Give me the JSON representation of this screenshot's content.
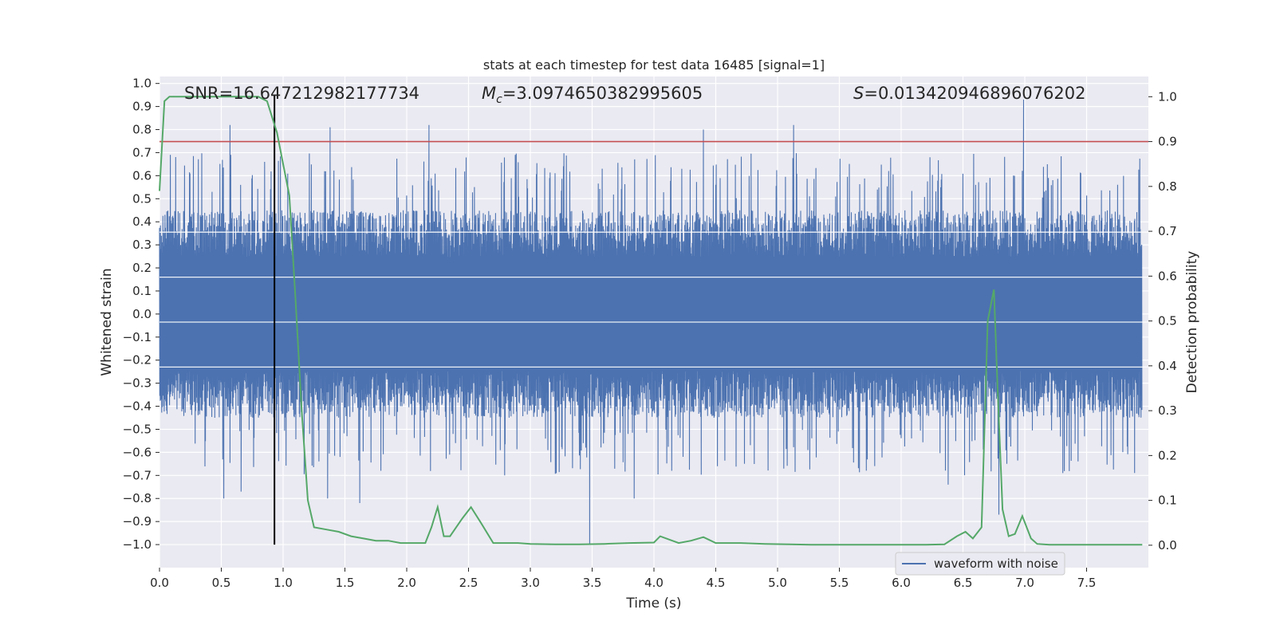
{
  "chart_data": {
    "type": "line",
    "title": "stats at each timestep for test data 16485 [signal=1]",
    "xlabel": "Time (s)",
    "ylabel_left": "Whitened strain",
    "ylabel_right": "Detection probability",
    "xlim": [
      0.0,
      8.0
    ],
    "ylim_left": [
      -1.1,
      1.03
    ],
    "ylim_right": [
      -0.05,
      1.045
    ],
    "x_ticks": [
      "0.0",
      "0.5",
      "1.0",
      "1.5",
      "2.0",
      "2.5",
      "3.0",
      "3.5",
      "4.0",
      "4.5",
      "5.0",
      "5.5",
      "6.0",
      "6.5",
      "7.0",
      "7.5"
    ],
    "y_ticks_left": [
      "1.0",
      "0.9",
      "0.8",
      "0.7",
      "0.6",
      "0.5",
      "0.4",
      "0.3",
      "0.2",
      "0.1",
      "0.0",
      "-0.1",
      "-0.2",
      "-0.3",
      "-0.4",
      "-0.5",
      "-0.6",
      "-0.7",
      "-0.8",
      "-0.9",
      "-1.0"
    ],
    "y_ticks_right": [
      "1.0",
      "0.9",
      "0.8",
      "0.7",
      "0.6",
      "0.5",
      "0.4",
      "0.3",
      "0.2",
      "0.1",
      "0.0"
    ],
    "grid": true,
    "legend_position": "bottom-right",
    "annotations": {
      "snr": "SNR=16.647212982177734",
      "mc_symbol": "M",
      "mc_sub": "c",
      "mc_value": "=3.0974650382995605",
      "s_symbol": "S",
      "s_value": "=0.013420946896076202"
    },
    "series": [
      {
        "name": "waveform with noise",
        "role": "strain",
        "axis": "left",
        "color": "#4c72b0",
        "sample_count": 2000,
        "band": [
          -0.45,
          0.45
        ],
        "peaks": [
          {
            "x": 0.57,
            "y": 0.82
          },
          {
            "x": 0.85,
            "y": 0.66
          },
          {
            "x": 1.38,
            "y": 0.81
          },
          {
            "x": 2.18,
            "y": 0.82
          },
          {
            "x": 4.4,
            "y": 0.8
          },
          {
            "x": 5.13,
            "y": 0.82
          },
          {
            "x": 6.99,
            "y": 0.93
          },
          {
            "x": 0.52,
            "y": -0.8
          },
          {
            "x": 0.66,
            "y": -0.77
          },
          {
            "x": 1.36,
            "y": -0.8
          },
          {
            "x": 1.62,
            "y": -0.82
          },
          {
            "x": 3.48,
            "y": -1.0
          },
          {
            "x": 3.84,
            "y": -0.8
          },
          {
            "x": 6.38,
            "y": -0.74
          },
          {
            "x": 6.79,
            "y": -0.87
          }
        ]
      },
      {
        "role": "detection probability",
        "axis": "right",
        "color": "#55a868",
        "x": [
          0.0,
          0.04,
          0.08,
          0.12,
          0.2,
          0.3,
          0.4,
          0.5,
          0.6,
          0.7,
          0.8,
          0.87,
          0.95,
          1.0,
          1.05,
          1.1,
          1.15,
          1.2,
          1.25,
          1.35,
          1.45,
          1.55,
          1.65,
          1.75,
          1.85,
          1.95,
          2.05,
          2.15,
          2.2,
          2.25,
          2.3,
          2.35,
          2.45,
          2.52,
          2.6,
          2.7,
          2.8,
          2.9,
          3.0,
          3.2,
          3.4,
          3.6,
          3.8,
          4.0,
          4.05,
          4.1,
          4.2,
          4.3,
          4.4,
          4.5,
          4.7,
          4.9,
          5.1,
          5.3,
          5.6,
          5.9,
          6.2,
          6.35,
          6.45,
          6.52,
          6.58,
          6.65,
          6.7,
          6.75,
          6.78,
          6.82,
          6.87,
          6.92,
          6.98,
          7.05,
          7.1,
          7.2,
          7.4,
          7.6,
          7.8,
          7.95
        ],
        "y": [
          0.79,
          0.99,
          1.0,
          1.0,
          1.0,
          1.0,
          1.0,
          1.0,
          1.0,
          1.0,
          1.0,
          0.99,
          0.92,
          0.85,
          0.78,
          0.55,
          0.3,
          0.1,
          0.04,
          0.035,
          0.03,
          0.02,
          0.015,
          0.01,
          0.01,
          0.005,
          0.005,
          0.005,
          0.04,
          0.085,
          0.02,
          0.02,
          0.06,
          0.085,
          0.05,
          0.005,
          0.005,
          0.005,
          0.003,
          0.002,
          0.002,
          0.003,
          0.005,
          0.006,
          0.02,
          0.015,
          0.005,
          0.01,
          0.018,
          0.005,
          0.005,
          0.003,
          0.002,
          0.001,
          0.001,
          0.001,
          0.001,
          0.002,
          0.02,
          0.03,
          0.015,
          0.04,
          0.5,
          0.57,
          0.35,
          0.08,
          0.02,
          0.025,
          0.065,
          0.015,
          0.003,
          0.001,
          0.001,
          0.001,
          0.001,
          0.001
        ]
      }
    ],
    "threshold": {
      "axis": "right",
      "y": 0.9,
      "color": "#c44e52"
    },
    "marker_time": {
      "x": 0.93,
      "y_from": -1.0,
      "y_to": 0.95,
      "color": "#000000"
    }
  }
}
